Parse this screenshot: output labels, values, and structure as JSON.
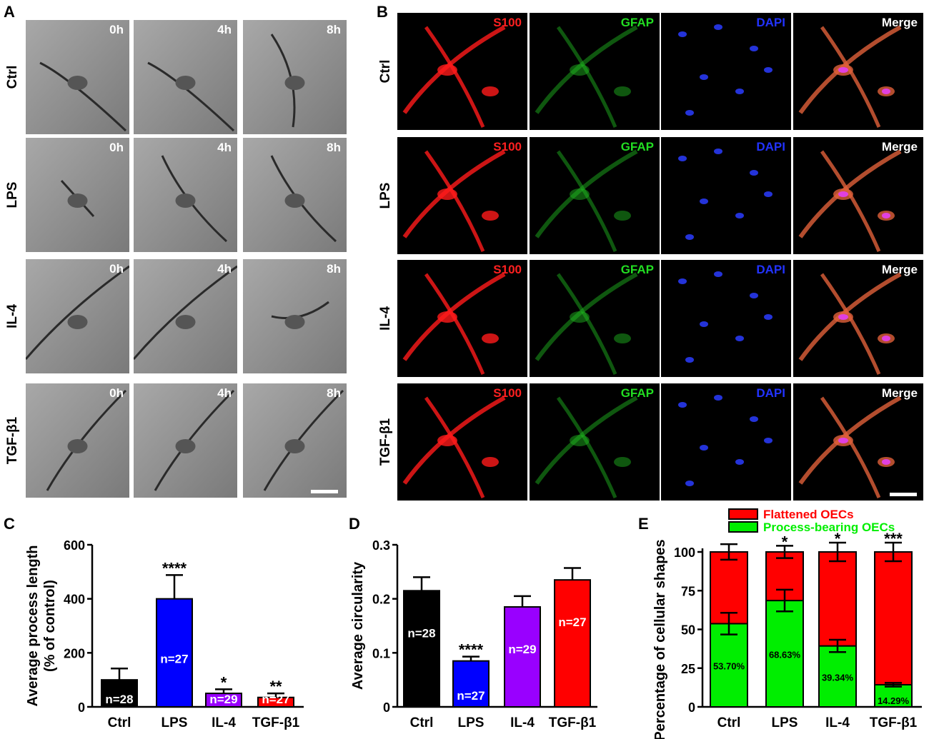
{
  "panel_a": {
    "letter": "A",
    "rows": [
      "Ctrl",
      "LPS",
      "IL-4",
      "TGF-β1"
    ],
    "timepoints": [
      "0h",
      "4h",
      "8h"
    ]
  },
  "panel_b": {
    "letter": "B",
    "rows": [
      "Ctrl",
      "LPS",
      "IL-4",
      "TGF-β1"
    ],
    "channels": [
      {
        "label": "S100",
        "color": "#ff2020"
      },
      {
        "label": "GFAP",
        "color": "#22dd22"
      },
      {
        "label": "DAPI",
        "color": "#2233ff"
      },
      {
        "label": "Merge",
        "color": "#ffffff"
      }
    ]
  },
  "chart_data": [
    {
      "panel": "C",
      "type": "bar",
      "categories": [
        "Ctrl",
        "LPS",
        "IL-4",
        "TGF-β1"
      ],
      "values": [
        100,
        400,
        50,
        35
      ],
      "errors": [
        42,
        88,
        15,
        15
      ],
      "n_labels": [
        "n=28",
        "n=27",
        "n=29",
        "n=27"
      ],
      "significance": [
        "",
        "****",
        "*",
        "**"
      ],
      "colors": [
        "#000000",
        "#0000ff",
        "#9900ff",
        "#ff0000"
      ],
      "ylabel_lines": [
        "Average process length",
        "(% of control)"
      ],
      "ylim": [
        0,
        600
      ],
      "yticks": [
        0,
        200,
        400,
        600
      ]
    },
    {
      "panel": "D",
      "type": "bar",
      "categories": [
        "Ctrl",
        "LPS",
        "IL-4",
        "TGF-β1"
      ],
      "values": [
        0.215,
        0.085,
        0.185,
        0.235
      ],
      "errors": [
        0.025,
        0.008,
        0.02,
        0.022
      ],
      "n_labels": [
        "n=28",
        "n=27",
        "n=29",
        "n=27"
      ],
      "significance": [
        "",
        "****",
        "",
        ""
      ],
      "colors": [
        "#000000",
        "#0000ff",
        "#9900ff",
        "#ff0000"
      ],
      "ylabel": "Average circularity",
      "ylim": [
        0,
        0.3
      ],
      "yticks": [
        "0",
        "0.1",
        "0.2",
        "0.3"
      ]
    },
    {
      "panel": "E",
      "type": "bar",
      "stacked": true,
      "categories": [
        "Ctrl",
        "LPS",
        "IL-4",
        "TGF-β1"
      ],
      "series": [
        {
          "name": "Process-bearing OECs",
          "values": [
            53.7,
            68.63,
            39.34,
            14.29
          ],
          "errors": [
            7,
            7,
            4,
            1.2
          ],
          "color": "#00ee00"
        },
        {
          "name": "Flattened OECs",
          "values": [
            46.3,
            31.37,
            60.66,
            85.71
          ],
          "errors": [
            5,
            4,
            6,
            6
          ],
          "color": "#ff0000"
        }
      ],
      "bottom_labels": [
        "53.70%",
        "68.63%",
        "39.34%",
        "14.29%"
      ],
      "significance": [
        "",
        "*",
        "*",
        "***"
      ],
      "ylabel": "Percentage of cellular shapes",
      "ylim": [
        0,
        100
      ],
      "yticks": [
        0,
        25,
        50,
        75,
        100
      ],
      "legend_position": "top"
    }
  ]
}
